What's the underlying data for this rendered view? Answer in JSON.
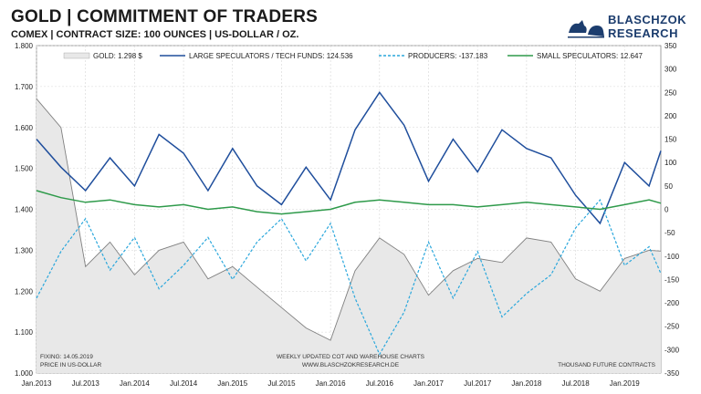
{
  "header": {
    "title": "GOLD | COMMITMENT OF TRADERS",
    "subtitle": "COMEX | CONTRACT SIZE: 100 OUNCES | US-DOLLAR / OZ.",
    "logo_line1": "BLASCHZOK",
    "logo_line2": "RESEARCH"
  },
  "notes": {
    "fixing": "FIXING: 14.05.2019",
    "price_in": "PRICE IN US-DOLLAR",
    "center1": "WEEKLY UPDATED COT AND WAREHOUSE CHARTS",
    "center2": "WWW.BLASCHZOKRESEARCH.DE",
    "right": "THOUSAND FUTURE CONTRACTS"
  },
  "colors": {
    "gold_fill": "#e8e8e8",
    "gold_line": "#808080",
    "large_spec": "#1f4e9c",
    "producers": "#2aa7dc",
    "small_spec": "#2e9a4a"
  },
  "chart_data": {
    "type": "line",
    "title": "GOLD | COMMITMENT OF TRADERS",
    "x_tick_labels": [
      "Jan.2013",
      "Jul.2013",
      "Jan.2014",
      "Jul.2014",
      "Jan.2015",
      "Jul.2015",
      "Jan.2016",
      "Jul.2016",
      "Jan.2017",
      "Jul.2017",
      "Jan.2018",
      "Jul.2018",
      "Jan.2019"
    ],
    "x_range": [
      "Jan.2013",
      "May 2019"
    ],
    "y_left": {
      "range": [
        1000,
        1800
      ],
      "ticks": [
        1000,
        1100,
        1200,
        1300,
        1400,
        1500,
        1600,
        1700,
        1800
      ],
      "tick_labels": [
        "1.000",
        "1.100",
        "1.200",
        "1.300",
        "1.400",
        "1.500",
        "1.600",
        "1.700",
        "1.800"
      ]
    },
    "y_right": {
      "range": [
        -350,
        350
      ],
      "ticks": [
        -350,
        -300,
        -250,
        -200,
        -150,
        -100,
        -50,
        0,
        50,
        100,
        150,
        200,
        250,
        300,
        350
      ],
      "label": "THOUSAND FUTURE CONTRACTS"
    },
    "grid": true,
    "legend_position": "top",
    "x": [
      2013.0,
      2013.25,
      2013.5,
      2013.75,
      2014.0,
      2014.25,
      2014.5,
      2014.75,
      2015.0,
      2015.25,
      2015.5,
      2015.75,
      2016.0,
      2016.25,
      2016.5,
      2016.75,
      2017.0,
      2017.25,
      2017.5,
      2017.75,
      2018.0,
      2018.25,
      2018.5,
      2018.75,
      2019.0,
      2019.25,
      2019.37
    ],
    "series": [
      {
        "name": "GOLD: 1.298 $",
        "axis": "left",
        "style": "area",
        "values": [
          1670,
          1600,
          1260,
          1320,
          1240,
          1300,
          1320,
          1230,
          1260,
          1210,
          1160,
          1110,
          1080,
          1250,
          1330,
          1290,
          1190,
          1250,
          1280,
          1270,
          1330,
          1320,
          1230,
          1200,
          1280,
          1300,
          1298
        ]
      },
      {
        "name": "LARGE SPECULATORS / TECH FUNDS: 124.536",
        "axis": "right",
        "style": "solid",
        "values": [
          150,
          90,
          40,
          110,
          50,
          160,
          120,
          40,
          130,
          50,
          10,
          90,
          20,
          170,
          250,
          180,
          60,
          150,
          80,
          170,
          130,
          110,
          30,
          -30,
          100,
          50,
          125
        ]
      },
      {
        "name": "PRODUCERS: -137.183",
        "axis": "right",
        "style": "dashed",
        "values": [
          -190,
          -90,
          -20,
          -130,
          -60,
          -170,
          -120,
          -60,
          -150,
          -70,
          -20,
          -110,
          -30,
          -190,
          -310,
          -220,
          -70,
          -190,
          -90,
          -230,
          -180,
          -140,
          -40,
          20,
          -120,
          -80,
          -137
        ]
      },
      {
        "name": "SMALL SPECULATORS: 12.647",
        "axis": "right",
        "style": "solid",
        "values": [
          40,
          25,
          15,
          20,
          10,
          5,
          10,
          0,
          5,
          -5,
          -10,
          -5,
          0,
          15,
          20,
          15,
          10,
          10,
          5,
          10,
          15,
          10,
          5,
          0,
          10,
          20,
          13
        ]
      }
    ]
  }
}
